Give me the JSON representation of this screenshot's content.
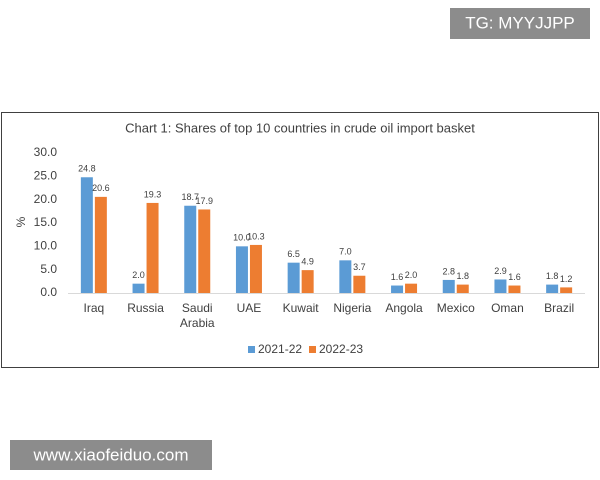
{
  "watermarks": [
    "TG: MYYJJPP",
    "www.xiaofeiduo.com"
  ],
  "chart_data": {
    "type": "bar",
    "title": "Chart 1: Shares of top 10 countries in crude oil import basket",
    "y_label": "%",
    "categories": [
      "Iraq",
      "Russia",
      "Saudi Arabia",
      "UAE",
      "Kuwait",
      "Nigeria",
      "Angola",
      "Mexico",
      "Oman",
      "Brazil"
    ],
    "series": [
      {
        "name": "2021-22",
        "color": "#5b9bd5",
        "values": [
          24.8,
          2,
          18.7,
          10,
          6.5,
          7,
          1.6,
          2.8,
          2.9,
          1.8
        ],
        "value_labels": [
          "24.8",
          "2.0",
          "18.7",
          "10.0",
          "6.5",
          "7.0",
          "1.6",
          "2.8",
          "2.9",
          "1.8"
        ]
      },
      {
        "name": "2022-23",
        "color": "#ed7d31",
        "values": [
          20.6,
          19.3,
          17.9,
          10.3,
          4.9,
          3.7,
          2,
          1.8,
          1.6,
          1.2
        ],
        "value_labels": [
          "20.6",
          "19.3",
          "17.9",
          "10.3",
          "4.9",
          "3.7",
          "2.0",
          "1.8",
          "1.6",
          "1.2"
        ]
      }
    ],
    "ylim": [
      0,
      30
    ],
    "yticks": [
      {
        "value": 0,
        "label": "0.0"
      },
      {
        "value": 5,
        "label": "5.0"
      },
      {
        "value": 10,
        "label": "10.0"
      },
      {
        "value": 15,
        "label": "15.0"
      },
      {
        "value": 20,
        "label": "20.0"
      },
      {
        "value": 25,
        "label": "25.0"
      },
      {
        "value": 30,
        "label": "30.0"
      }
    ],
    "legend": "bottom"
  }
}
